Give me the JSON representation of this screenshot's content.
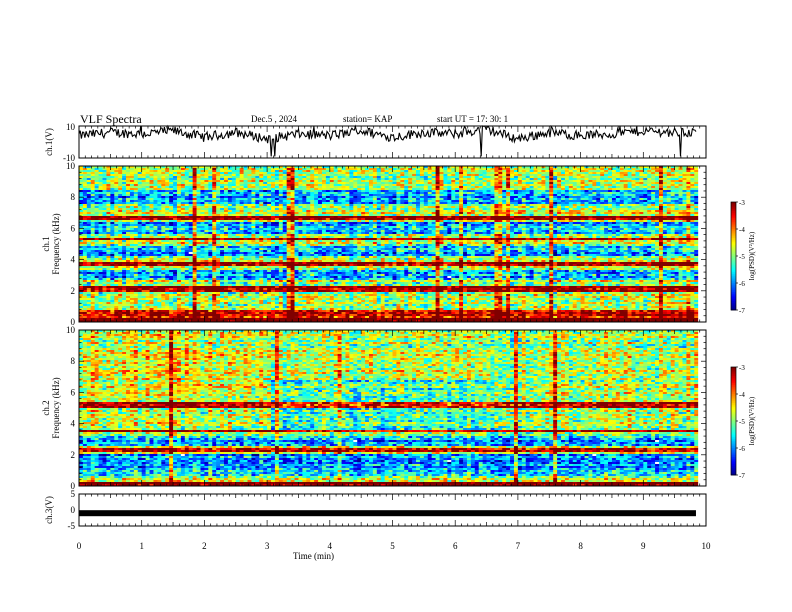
{
  "header": {
    "title": "VLF Spectra",
    "date": "Dec.5  , 2024",
    "station": "station= KAP",
    "start": "start  UT  =   17: 30: 1"
  },
  "chart_data": [
    {
      "type": "line",
      "ylabel": "ch.1(V)",
      "ylim": [
        -10,
        10
      ],
      "yticks": [
        "10",
        "-10"
      ],
      "xlim": [
        0,
        10
      ],
      "description_free": true,
      "values_sampled_every_0_5_min": [
        4,
        6,
        5,
        7,
        3,
        6,
        2,
        5,
        4,
        7,
        3,
        6,
        5,
        8,
        2,
        6,
        4,
        5,
        7,
        6
      ]
    },
    {
      "type": "heatmap",
      "ylabel": "ch.1\nFrequency (kHz)",
      "xlim": [
        0,
        10
      ],
      "ylim": [
        0,
        10
      ],
      "yticks": [
        "0",
        "2",
        "4",
        "6",
        "8",
        "10"
      ],
      "colorbar": {
        "label": "log(PSD)(V²/Hz)",
        "range": [
          -7,
          -3
        ],
        "ticks": [
          "-3",
          "-4",
          "-5",
          "-6",
          "-7"
        ]
      }
    },
    {
      "type": "heatmap",
      "ylabel": "ch.2\nFrequency (kHz)",
      "xlim": [
        0,
        10
      ],
      "ylim": [
        0,
        10
      ],
      "yticks": [
        "0",
        "2",
        "4",
        "6",
        "8",
        "10"
      ],
      "colorbar": {
        "label": "log(PSD)(V²/Hz)",
        "range": [
          -7,
          -3
        ],
        "ticks": [
          "-3",
          "-4",
          "-5",
          "-6",
          "-7"
        ]
      }
    },
    {
      "type": "line",
      "ylabel": "ch.3(V)",
      "ylim": [
        -5,
        5
      ],
      "yticks": [
        "5",
        "0",
        "-5"
      ],
      "xlim": [
        0,
        10
      ],
      "xlabel": "Time  (min)",
      "xticks": [
        "0",
        "1",
        "2",
        "3",
        "4",
        "5",
        "6",
        "7",
        "8",
        "9",
        "10"
      ],
      "level": -1,
      "x_end": 9.84
    }
  ]
}
